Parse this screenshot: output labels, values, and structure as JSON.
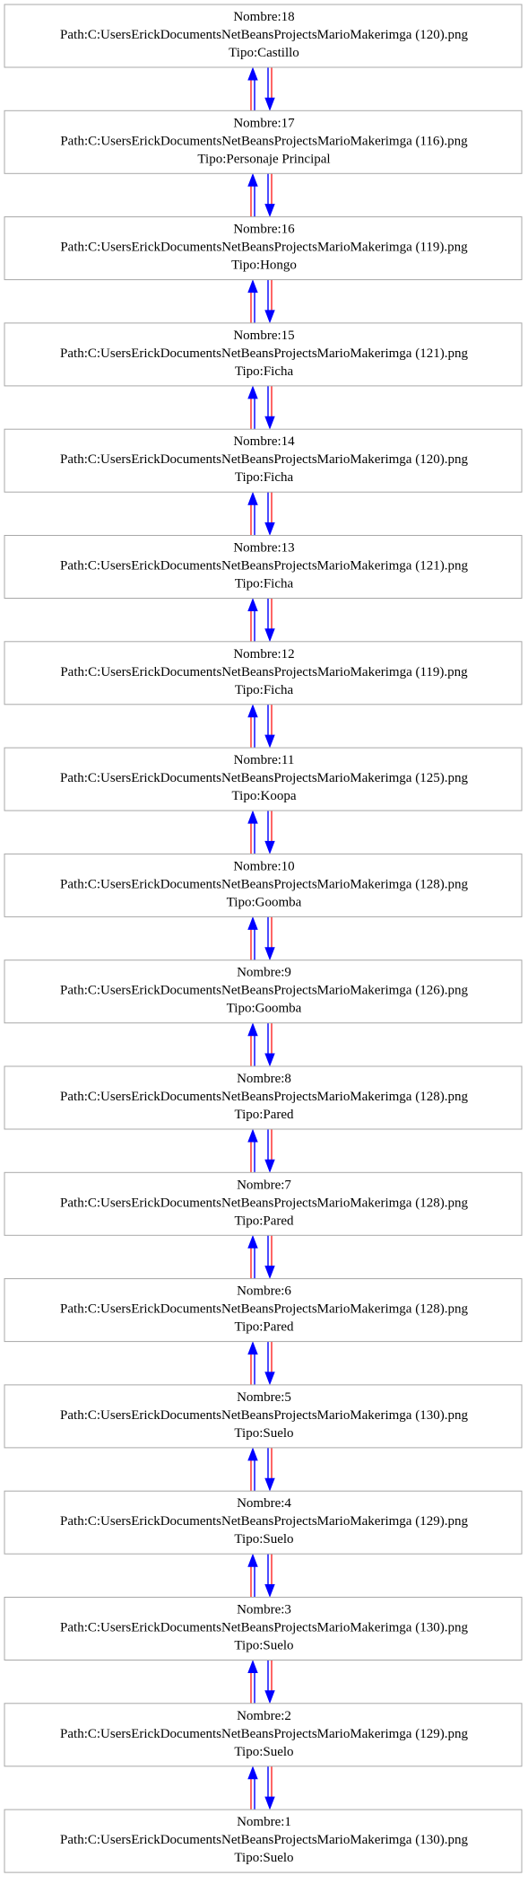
{
  "colors": {
    "edge_blue": "#0000ff",
    "edge_red": "#ff0000",
    "node_border": "#a8a8a8",
    "text": "#000000",
    "background": "#ffffff"
  },
  "nodes": [
    {
      "nombre": "Nombre:18",
      "path": "Path:C:UsersErickDocumentsNetBeansProjectsMarioMakerimga (120).png",
      "tipo": "Tipo:Castillo"
    },
    {
      "nombre": "Nombre:17",
      "path": "Path:C:UsersErickDocumentsNetBeansProjectsMarioMakerimga (116).png",
      "tipo": "Tipo:Personaje Principal"
    },
    {
      "nombre": "Nombre:16",
      "path": "Path:C:UsersErickDocumentsNetBeansProjectsMarioMakerimga (119).png",
      "tipo": "Tipo:Hongo"
    },
    {
      "nombre": "Nombre:15",
      "path": "Path:C:UsersErickDocumentsNetBeansProjectsMarioMakerimga (121).png",
      "tipo": "Tipo:Ficha"
    },
    {
      "nombre": "Nombre:14",
      "path": "Path:C:UsersErickDocumentsNetBeansProjectsMarioMakerimga (120).png",
      "tipo": "Tipo:Ficha"
    },
    {
      "nombre": "Nombre:13",
      "path": "Path:C:UsersErickDocumentsNetBeansProjectsMarioMakerimga (121).png",
      "tipo": "Tipo:Ficha"
    },
    {
      "nombre": "Nombre:12",
      "path": "Path:C:UsersErickDocumentsNetBeansProjectsMarioMakerimga (119).png",
      "tipo": "Tipo:Ficha"
    },
    {
      "nombre": "Nombre:11",
      "path": "Path:C:UsersErickDocumentsNetBeansProjectsMarioMakerimga (125).png",
      "tipo": "Tipo:Koopa"
    },
    {
      "nombre": "Nombre:10",
      "path": "Path:C:UsersErickDocumentsNetBeansProjectsMarioMakerimga (128).png",
      "tipo": "Tipo:Goomba"
    },
    {
      "nombre": "Nombre:9",
      "path": "Path:C:UsersErickDocumentsNetBeansProjectsMarioMakerimga (126).png",
      "tipo": "Tipo:Goomba"
    },
    {
      "nombre": "Nombre:8",
      "path": "Path:C:UsersErickDocumentsNetBeansProjectsMarioMakerimga (128).png",
      "tipo": "Tipo:Pared"
    },
    {
      "nombre": "Nombre:7",
      "path": "Path:C:UsersErickDocumentsNetBeansProjectsMarioMakerimga (128).png",
      "tipo": "Tipo:Pared"
    },
    {
      "nombre": "Nombre:6",
      "path": "Path:C:UsersErickDocumentsNetBeansProjectsMarioMakerimga (128).png",
      "tipo": "Tipo:Pared"
    },
    {
      "nombre": "Nombre:5",
      "path": "Path:C:UsersErickDocumentsNetBeansProjectsMarioMakerimga (130).png",
      "tipo": "Tipo:Suelo"
    },
    {
      "nombre": "Nombre:4",
      "path": "Path:C:UsersErickDocumentsNetBeansProjectsMarioMakerimga (129).png",
      "tipo": "Tipo:Suelo"
    },
    {
      "nombre": "Nombre:3",
      "path": "Path:C:UsersErickDocumentsNetBeansProjectsMarioMakerimga (130).png",
      "tipo": "Tipo:Suelo"
    },
    {
      "nombre": "Nombre:2",
      "path": "Path:C:UsersErickDocumentsNetBeansProjectsMarioMakerimga (129).png",
      "tipo": "Tipo:Suelo"
    },
    {
      "nombre": "Nombre:1",
      "path": "Path:C:UsersErickDocumentsNetBeansProjectsMarioMakerimga (130).png",
      "tipo": "Tipo:Suelo"
    }
  ]
}
